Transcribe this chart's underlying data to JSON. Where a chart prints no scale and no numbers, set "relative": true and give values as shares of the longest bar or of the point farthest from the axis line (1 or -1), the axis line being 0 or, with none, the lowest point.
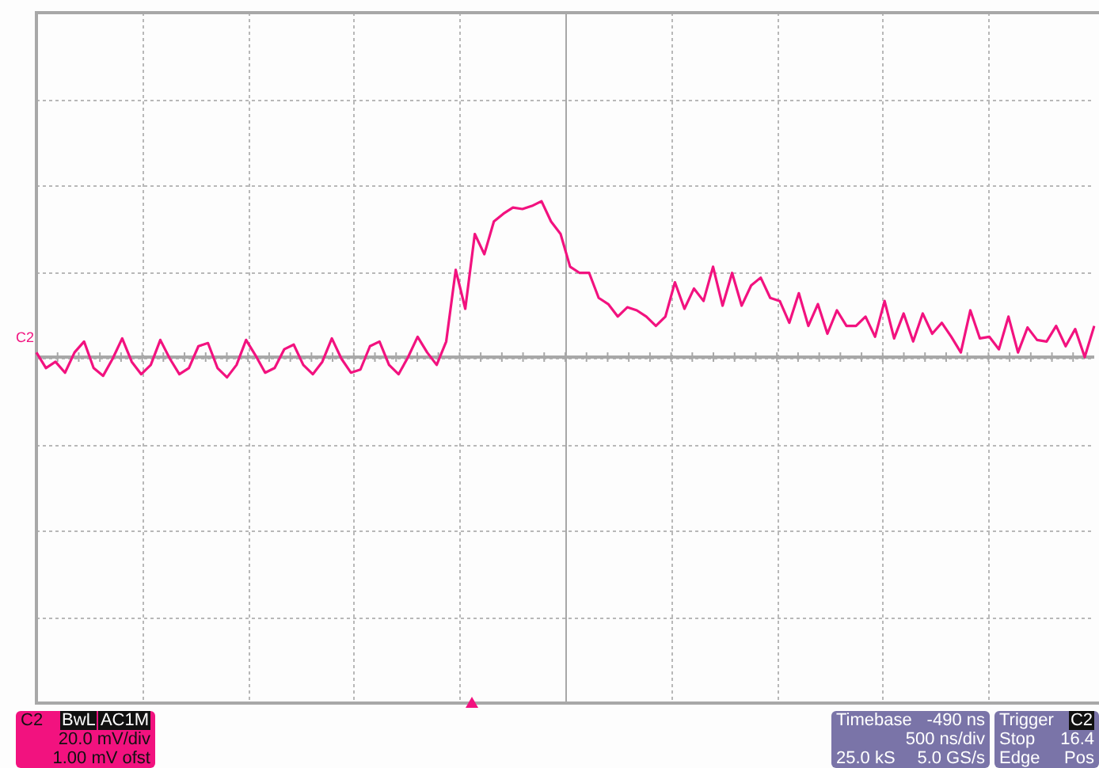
{
  "chart_data": {
    "type": "line",
    "relative": true,
    "grid": true,
    "legend": false,
    "marker": "none",
    "line_style": "solid",
    "categories": [
      null,
      null,
      null,
      null,
      null,
      null,
      null,
      null,
      null,
      null,
      null,
      null,
      null,
      null,
      null,
      null,
      null,
      null,
      null,
      null,
      null,
      null,
      null,
      null,
      null,
      null,
      null,
      null,
      null,
      null,
      null,
      null,
      null,
      null,
      null,
      null,
      null,
      null,
      null,
      null,
      null,
      null,
      null,
      null,
      null,
      null,
      null,
      null,
      null,
      null,
      null,
      null,
      null,
      null,
      null,
      null,
      null,
      null,
      null,
      null,
      null,
      null,
      null,
      null,
      null,
      null,
      null,
      null,
      null,
      null,
      null,
      null,
      null,
      null,
      null,
      null,
      null,
      null,
      null,
      null,
      null,
      null,
      null,
      null,
      null,
      null,
      null,
      null,
      null,
      null,
      null,
      null,
      null,
      null,
      null,
      null,
      null,
      null,
      null,
      null,
      null,
      null,
      null,
      null,
      null,
      null,
      null,
      null,
      null,
      null,
      null,
      null
    ],
    "series": [
      {
        "color": "#f2127f",
        "values": [
          0.03,
          -0.07,
          -0.03,
          -0.1,
          0.03,
          0.1,
          -0.07,
          -0.12,
          -0.01,
          0.12,
          -0.03,
          -0.11,
          -0.05,
          0.11,
          -0.01,
          -0.11,
          -0.07,
          0.07,
          0.09,
          -0.07,
          -0.13,
          -0.05,
          0.11,
          0.01,
          -0.1,
          -0.07,
          0.05,
          0.08,
          -0.05,
          -0.11,
          -0.03,
          0.12,
          -0.01,
          -0.1,
          -0.08,
          0.07,
          0.1,
          -0.05,
          -0.11,
          0,
          0.13,
          0.03,
          -0.05,
          0.1,
          0.56,
          0.31,
          0.79,
          0.66,
          0.87,
          0.92,
          0.96,
          0.95,
          0.97,
          1,
          0.87,
          0.79,
          0.58,
          0.54,
          0.54,
          0.38,
          0.34,
          0.26,
          0.32,
          0.3,
          0.26,
          0.2,
          0.26,
          0.48,
          0.31,
          0.44,
          0.36,
          0.58,
          0.33,
          0.54,
          0.33,
          0.46,
          0.51,
          0.38,
          0.36,
          0.22,
          0.41,
          0.2,
          0.34,
          0.15,
          0.3,
          0.2,
          0.2,
          0.26,
          0.13,
          0.36,
          0.12,
          0.28,
          0.1,
          0.28,
          0.15,
          0.22,
          0.13,
          0.03,
          0.3,
          0.12,
          0.13,
          0.05,
          0.26,
          0.03,
          0.19,
          0.11,
          0.1,
          0.2,
          0.07,
          0.18,
          0,
          0.2
        ]
      }
    ],
    "annotations": [
      "C2",
      "C2",
      "BwL",
      "AC1M",
      "20.0 mV/div",
      "1.00 mV ofst",
      "Timebase",
      "-490 ns",
      "500 ns/div",
      "25.0 kS",
      "5.0 GS/s",
      "Trigger",
      "C2",
      "Stop",
      "16.4",
      "Edge",
      "Pos"
    ]
  }
}
